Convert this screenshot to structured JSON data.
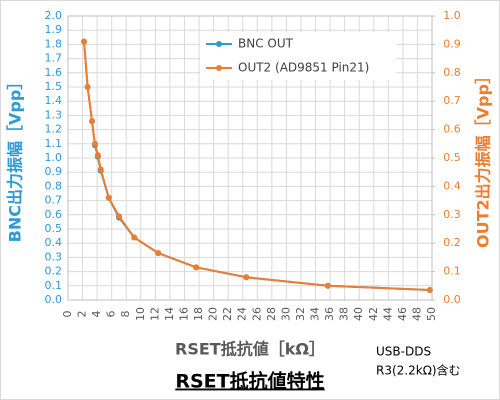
{
  "chart_data": {
    "type": "line",
    "title": "RSET抵抗値特性",
    "x_label": "RSET抵抗値［kΩ］",
    "y_label": "BNC出力振幅［Vpp］",
    "y2_label": "OUT2出力振幅［Vpp］",
    "annotations": [
      "USB-DDS",
      "R3(2.2kΩ)含む"
    ],
    "x": [
      2.2,
      2.7,
      3.3,
      3.7,
      4.1,
      4.5,
      5.6,
      7.0,
      9.1,
      12.4,
      17.6,
      24.5,
      35.7,
      49.7
    ],
    "series": [
      {
        "name": "BNC OUT",
        "color": "#2e9bd6",
        "values": [
          1.82,
          1.5,
          1.26,
          1.09,
          1.01,
          0.91,
          0.72,
          0.58,
          0.44,
          0.33,
          0.23,
          0.16,
          0.1,
          0.07
        ]
      },
      {
        "name": "OUT2 (AD9851 Pin21)",
        "color": "#ed7d31",
        "axis": "y2",
        "values": [
          0.91,
          0.75,
          0.63,
          0.55,
          0.51,
          0.46,
          0.36,
          0.295,
          0.22,
          0.165,
          0.115,
          0.08,
          0.05,
          0.035
        ]
      }
    ],
    "xlim": [
      0,
      50
    ],
    "xticks": [
      0,
      2,
      4,
      6,
      8,
      10,
      12,
      14,
      16,
      18,
      20,
      22,
      24,
      26,
      28,
      30,
      32,
      34,
      36,
      38,
      40,
      42,
      44,
      46,
      48,
      50
    ],
    "ylim": [
      0,
      2
    ],
    "yticks": [
      {
        "value": 0,
        "label": "0.0"
      },
      0.1,
      0.2,
      0.3,
      0.4,
      0.5,
      0.6,
      0.7,
      0.8,
      0.9,
      {
        "value": 1,
        "label": "1.0"
      },
      1.1,
      1.2,
      1.3,
      1.4,
      1.5,
      1.6,
      1.7,
      1.8,
      1.9,
      {
        "value": 2,
        "label": "2.0"
      }
    ],
    "y2lim": [
      0,
      1
    ],
    "y2ticks": [
      {
        "value": 0,
        "label": "0.0"
      },
      0.1,
      0.2,
      0.3,
      0.4,
      0.5,
      0.6,
      0.7,
      0.8,
      0.9,
      {
        "value": 1,
        "label": "1.0"
      }
    ],
    "grid": true
  }
}
